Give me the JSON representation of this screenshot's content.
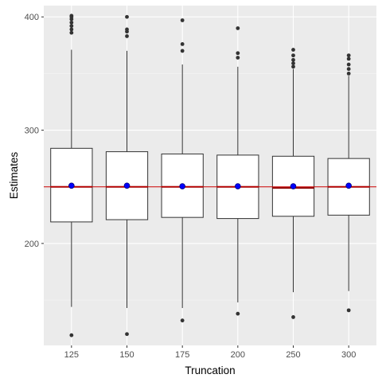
{
  "chart_data": {
    "type": "boxplot",
    "title": "",
    "xlabel": "Truncation",
    "ylabel": "Estimates",
    "categories": [
      "125",
      "150",
      "175",
      "200",
      "250",
      "300"
    ],
    "ylim": [
      110,
      410
    ],
    "yticks": [
      200,
      300,
      400
    ],
    "reference_line": {
      "y": 250,
      "color": "#cc0000"
    },
    "boxes": [
      {
        "category": "125",
        "whisker_low": 144,
        "q1": 219,
        "median": 250,
        "q3": 284,
        "whisker_high": 371,
        "mean": 251,
        "outliers": [
          119,
          386,
          389,
          392,
          395,
          398,
          400,
          401
        ]
      },
      {
        "category": "150",
        "whisker_low": 143,
        "q1": 221,
        "median": 250,
        "q3": 281,
        "whisker_high": 370,
        "mean": 251,
        "outliers": [
          120,
          383,
          387,
          389,
          400
        ]
      },
      {
        "category": "175",
        "whisker_low": 143,
        "q1": 223,
        "median": 250,
        "q3": 279,
        "whisker_high": 358,
        "mean": 250.5,
        "outliers": [
          132,
          370,
          376,
          397
        ]
      },
      {
        "category": "200",
        "whisker_low": 148,
        "q1": 222,
        "median": 250,
        "q3": 278,
        "whisker_high": 356,
        "mean": 250.5,
        "outliers": [
          138,
          364,
          368,
          390
        ]
      },
      {
        "category": "250",
        "whisker_low": 157,
        "q1": 224,
        "median": 249,
        "q3": 277,
        "whisker_high": 354,
        "mean": 250.5,
        "outliers": [
          135,
          356,
          359,
          362,
          366,
          371
        ]
      },
      {
        "category": "300",
        "whisker_low": 158,
        "q1": 225,
        "median": 250,
        "q3": 275,
        "whisker_high": 348,
        "mean": 251,
        "outliers": [
          141,
          350,
          354,
          358,
          363,
          366
        ]
      }
    ],
    "grid": true,
    "legend": "none",
    "colors": {
      "panel_background": "#ebebeb",
      "grid_major": "#ffffff",
      "grid_minor": "#f5f5f5",
      "box_fill": "#ffffff",
      "box_stroke": "#333333",
      "median": "#8b0000",
      "mean_point": "#0000ff",
      "outlier": "#333333",
      "reference_line": "#cc0000"
    }
  }
}
